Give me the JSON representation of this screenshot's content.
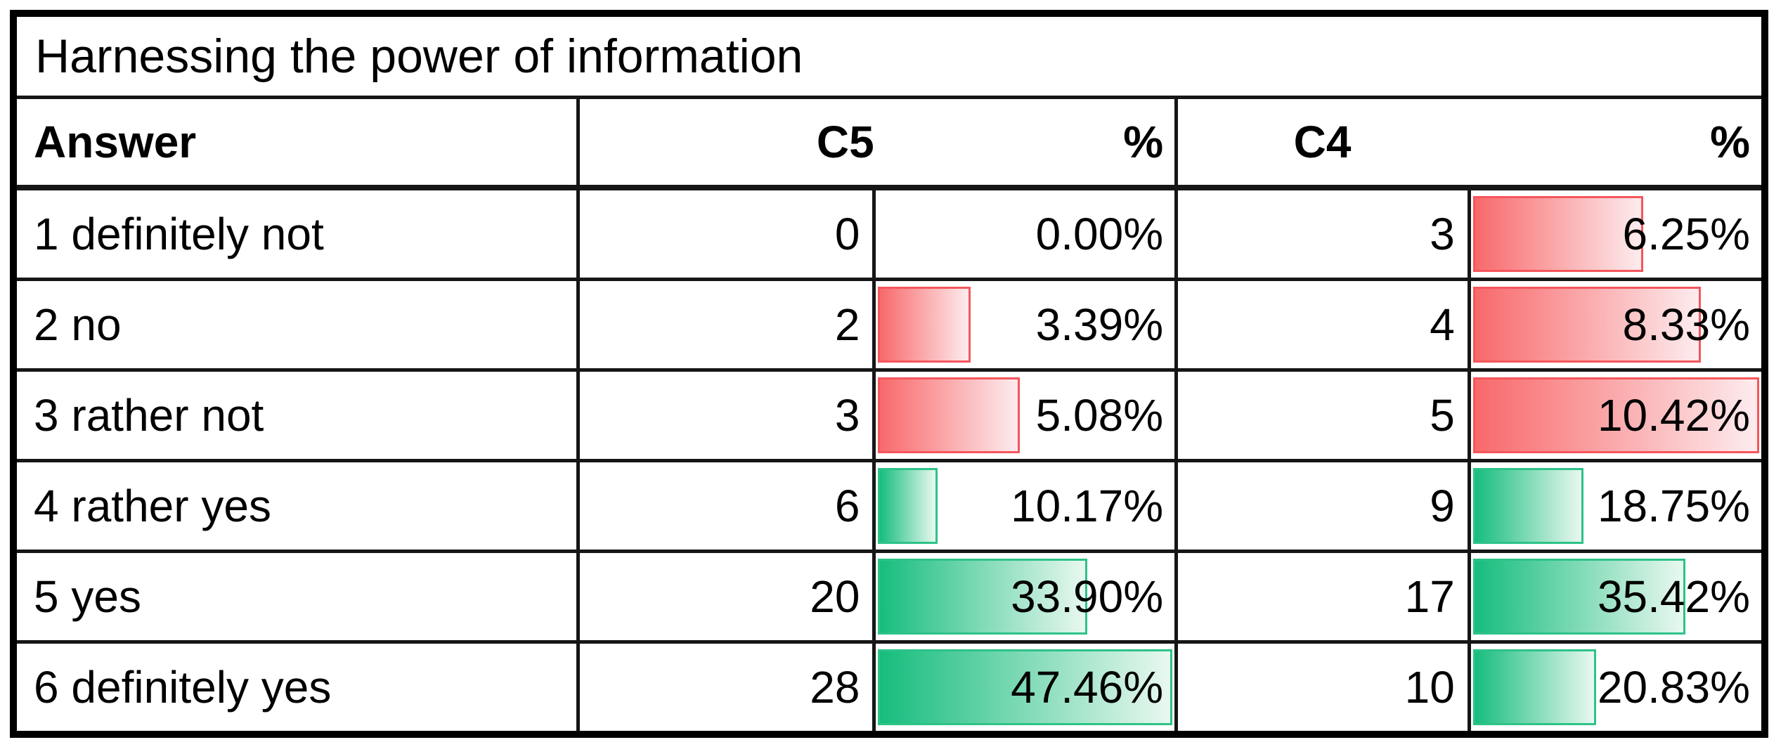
{
  "table": {
    "title": "Harnessing the power of information",
    "header": {
      "answer": "Answer",
      "c5": "C5",
      "c5_pct": "%",
      "c4": "C4",
      "c4_pct": "%"
    },
    "rows": [
      {
        "answer": "1 definitely not",
        "c5": "0",
        "c5_pct": "0.00%",
        "c5_bar": 0,
        "c5_color": "none",
        "c4": "3",
        "c4_pct": "6.25%",
        "c4_bar": 60.0,
        "c4_color": "red"
      },
      {
        "answer": "2 no",
        "c5": "2",
        "c5_pct": "3.39%",
        "c5_bar": 32.5,
        "c5_color": "red",
        "c4": "4",
        "c4_pct": "8.33%",
        "c4_bar": 79.9,
        "c4_color": "red"
      },
      {
        "answer": "3 rather not",
        "c5": "3",
        "c5_pct": "5.08%",
        "c5_bar": 48.8,
        "c5_color": "red",
        "c4": "5",
        "c4_pct": "10.42%",
        "c4_bar": 100,
        "c4_color": "red"
      },
      {
        "answer": "4 rather yes",
        "c5": "6",
        "c5_pct": "10.17%",
        "c5_bar": 21.4,
        "c5_color": "green",
        "c4": "9",
        "c4_pct": "18.75%",
        "c4_bar": 39.5,
        "c4_color": "green"
      },
      {
        "answer": "5 yes",
        "c5": "20",
        "c5_pct": "33.90%",
        "c5_bar": 71.4,
        "c5_color": "green",
        "c4": "17",
        "c4_pct": "35.42%",
        "c4_bar": 74.6,
        "c4_color": "green"
      },
      {
        "answer": "6 definitely yes",
        "c5": "28",
        "c5_pct": "47.46%",
        "c5_bar": 100,
        "c5_color": "green",
        "c4": "10",
        "c4_pct": "20.83%",
        "c4_bar": 43.9,
        "c4_color": "green"
      }
    ]
  },
  "colors": {
    "red_solid": "#f8696b",
    "red_light": "#fdecee",
    "red_border": "#f5565c",
    "green_solid": "#17bd7d",
    "green_light": "#e9f8f0",
    "green_border": "#2dc387",
    "grid": "#161616",
    "outer_border": "#000000",
    "background": "#ffffff",
    "text": "#000000"
  },
  "chart_data": {
    "type": "table",
    "title": "Harnessing the power of information",
    "categories": [
      "1 definitely not",
      "2 no",
      "3 rather not",
      "4 rather yes",
      "5 yes",
      "6 definitely yes"
    ],
    "series": [
      {
        "name": "C5",
        "values": [
          0,
          2,
          3,
          6,
          20,
          28
        ]
      },
      {
        "name": "C5 %",
        "values": [
          0.0,
          3.39,
          5.08,
          10.17,
          33.9,
          47.46
        ]
      },
      {
        "name": "C4",
        "values": [
          3,
          4,
          5,
          9,
          17,
          10
        ]
      },
      {
        "name": "C4 %",
        "values": [
          6.25,
          8.33,
          10.42,
          18.75,
          35.42,
          20.83
        ]
      }
    ],
    "bar_encoding": {
      "red_rows": [
        "1 definitely not",
        "2 no",
        "3 rather not"
      ],
      "green_rows": [
        "4 rather yes",
        "5 yes",
        "6 definitely yes"
      ],
      "red_scale_max_pct": 10.42,
      "green_scale_max_pct": 47.46
    }
  }
}
